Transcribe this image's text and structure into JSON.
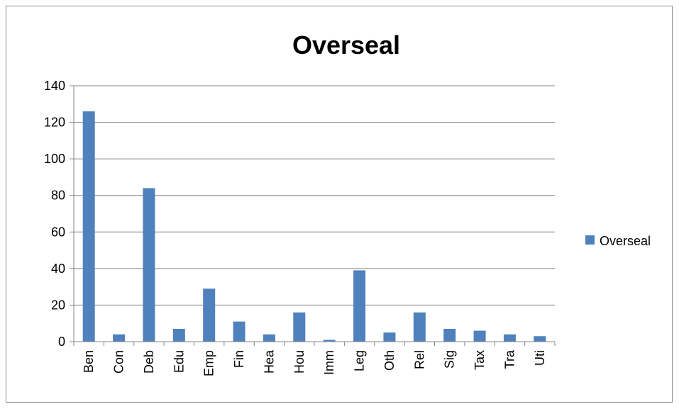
{
  "chart_data": {
    "type": "bar",
    "title": "Overseal",
    "xlabel": "",
    "ylabel": "",
    "categories": [
      "Ben",
      "Con",
      "Deb",
      "Edu",
      "Emp",
      "Fin",
      "Hea",
      "Hou",
      "Imm",
      "Leg",
      "Oth",
      "Rel",
      "Sig",
      "Tax",
      "Tra",
      "Uti"
    ],
    "series": [
      {
        "name": "Overseal",
        "values": [
          126,
          4,
          84,
          7,
          29,
          11,
          4,
          16,
          1,
          39,
          5,
          16,
          7,
          6,
          4,
          3
        ],
        "color": "#4f81bd"
      }
    ],
    "ylim": [
      0,
      140
    ],
    "yticks": [
      0,
      20,
      40,
      60,
      80,
      100,
      120,
      140
    ],
    "grid": true,
    "legend_position": "right"
  }
}
